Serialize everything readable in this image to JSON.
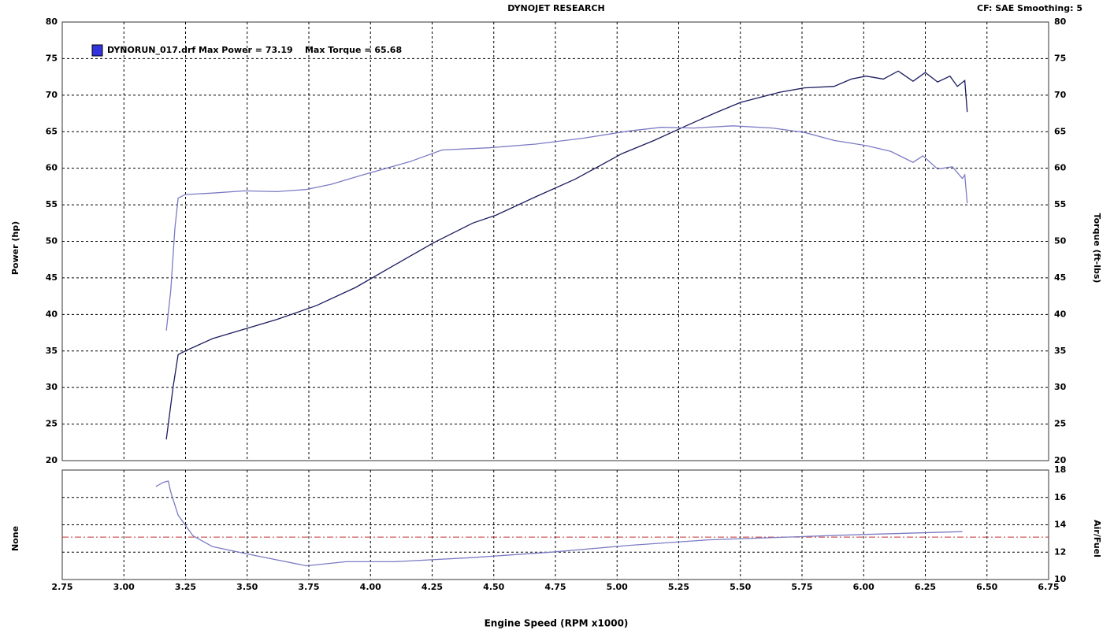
{
  "chart_data": [
    {
      "type": "line",
      "title": "DYNOJET RESEARCH",
      "subtitle": "CF: SAE  Smoothing: 5",
      "legend_text": "DYNORUN_017.drf Max Power = 73.19    Max Torque = 65.68",
      "legend_color": "#3333dd",
      "ylabel": "Power (hp)",
      "y2label": "Torque (ft-lbs)",
      "xlim": [
        2.75,
        6.75
      ],
      "ylim": [
        20,
        80
      ],
      "yticks": [
        20,
        25,
        30,
        35,
        40,
        45,
        50,
        55,
        60,
        65,
        70,
        75,
        80
      ],
      "y2lim": [
        20,
        80
      ],
      "y2ticks": [
        20,
        25,
        30,
        35,
        40,
        45,
        50,
        55,
        60,
        65,
        70,
        75,
        80
      ],
      "grid": true,
      "series": [
        {
          "color": "#1a1a5e",
          "x": [
            3.172,
            3.2,
            3.22,
            3.248,
            3.36,
            3.49,
            3.62,
            3.78,
            3.94,
            4.095,
            4.255,
            4.415,
            4.51,
            4.67,
            4.83,
            5.02,
            5.15,
            5.28,
            5.4,
            5.5,
            5.66,
            5.76,
            5.88,
            5.95,
            6.01,
            6.08,
            6.14,
            6.2,
            6.25,
            6.3,
            6.35,
            6.38,
            6.41,
            6.42
          ],
          "values": [
            22.9,
            30.2,
            34.5,
            35.0,
            36.7,
            38.0,
            39.3,
            41.2,
            43.7,
            46.7,
            49.8,
            52.5,
            53.6,
            56.1,
            58.5,
            62.0,
            63.8,
            65.8,
            67.6,
            69.0,
            70.4,
            71.0,
            71.2,
            72.2,
            72.6,
            72.2,
            73.3,
            71.9,
            73.1,
            71.8,
            72.6,
            71.2,
            72.0,
            67.7
          ]
        },
        {
          "color": "#7b7bc4",
          "axis": "y2",
          "x": [
            3.172,
            3.19,
            3.207,
            3.22,
            3.248,
            3.36,
            3.49,
            3.62,
            3.74,
            3.84,
            3.97,
            4.16,
            4.29,
            4.48,
            4.67,
            4.86,
            5.05,
            5.18,
            5.31,
            5.47,
            5.63,
            5.76,
            5.88,
            6.01,
            6.11,
            6.2,
            6.24,
            6.3,
            6.36,
            6.4,
            6.41,
            6.42
          ],
          "values": [
            37.8,
            43.2,
            51.8,
            55.9,
            56.4,
            56.6,
            56.9,
            56.8,
            57.1,
            57.8,
            59.1,
            60.9,
            62.5,
            62.8,
            63.3,
            64.1,
            65.1,
            65.6,
            65.5,
            65.8,
            65.5,
            64.9,
            63.8,
            63.1,
            62.3,
            60.8,
            61.7,
            59.9,
            60.2,
            58.6,
            59.1,
            55.2
          ]
        }
      ]
    },
    {
      "type": "line",
      "ylabel": "None",
      "y2label": "Air/Fuel",
      "xlabel": "Engine Speed (RPM x1000)",
      "xlim": [
        2.75,
        6.75
      ],
      "xticks": [
        2.75,
        {
          "value": 3,
          "label": "3.00"
        },
        3.25,
        {
          "value": 3.5,
          "label": "3.50"
        },
        3.75,
        {
          "value": 4,
          "label": "4.00"
        },
        4.25,
        {
          "value": 4.5,
          "label": "4.50"
        },
        4.75,
        {
          "value": 5,
          "label": "5.00"
        },
        5.25,
        {
          "value": 5.5,
          "label": "5.50"
        },
        5.75,
        {
          "value": 6,
          "label": "6.00"
        },
        6.25,
        {
          "value": 6.5,
          "label": "6.50"
        },
        6.75
      ],
      "y2lim": [
        10,
        18
      ],
      "y2ticks": [
        10,
        12,
        14,
        16,
        18
      ],
      "grid": true,
      "reference_line": {
        "value": 13.1,
        "color": "#c03030"
      },
      "series": [
        {
          "color": "#7b7bc4",
          "axis": "y2",
          "x": [
            3.13,
            3.16,
            3.18,
            3.19,
            3.22,
            3.28,
            3.36,
            3.52,
            3.74,
            3.9,
            4.095,
            4.41,
            4.73,
            5.05,
            5.37,
            5.69,
            6.01,
            6.4
          ],
          "values": [
            16.8,
            17.1,
            17.2,
            16.4,
            14.7,
            13.2,
            12.4,
            11.8,
            11.0,
            11.3,
            11.3,
            11.6,
            12.0,
            12.5,
            12.9,
            13.1,
            13.3,
            13.5
          ]
        }
      ]
    }
  ]
}
